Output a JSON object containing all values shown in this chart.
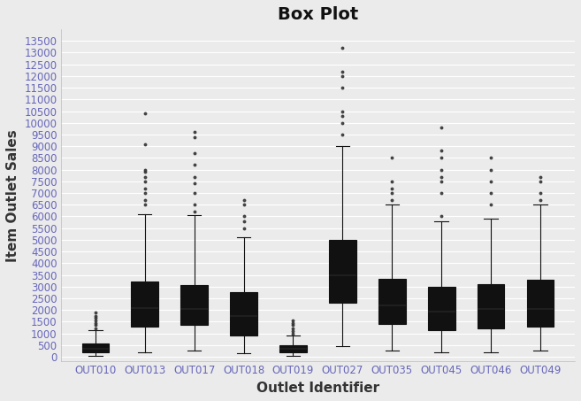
{
  "title": "Box Plot",
  "xlabel": "Outlet Identifier",
  "ylabel": "Item Outlet Sales",
  "title_fontsize": 14,
  "label_fontsize": 11,
  "tick_fontsize": 8.5,
  "background_color": "#EBEBEB",
  "box_color": "#EE0000",
  "median_color": "#222222",
  "whisker_color": "#111111",
  "outlier_color": "#333333",
  "grid_color": "#FFFFFF",
  "tick_color": "#6666BB",
  "label_color": "#333333",
  "ylim": [
    -200,
    14000
  ],
  "yticks": [
    0,
    500,
    1000,
    1500,
    2000,
    2500,
    3000,
    3500,
    4000,
    4500,
    5000,
    5500,
    6000,
    6500,
    7000,
    7500,
    8000,
    8500,
    9000,
    9500,
    10000,
    10500,
    11000,
    11500,
    12000,
    12500,
    13000,
    13500
  ],
  "outlets": [
    "OUT010",
    "OUT013",
    "OUT017",
    "OUT018",
    "OUT019",
    "OUT027",
    "OUT035",
    "OUT045",
    "OUT046",
    "OUT049"
  ],
  "box_stats": {
    "OUT010": {
      "q1": 200,
      "median": 340,
      "q3": 560,
      "whislo": 33,
      "whishi": 1150,
      "fliers": [
        1200,
        1350,
        1450,
        1550,
        1650,
        1750,
        1900
      ]
    },
    "OUT013": {
      "q1": 1300,
      "median": 2100,
      "q3": 3200,
      "whislo": 190,
      "whishi": 6100,
      "fliers": [
        6500,
        6700,
        7000,
        7200,
        7500,
        7700,
        7900,
        8000,
        9100,
        10400
      ]
    },
    "OUT017": {
      "q1": 1380,
      "median": 2050,
      "q3": 3080,
      "whislo": 280,
      "whishi": 6050,
      "fliers": [
        6200,
        6500,
        7000,
        7400,
        7700,
        8200,
        8700,
        9400,
        9600
      ]
    },
    "OUT018": {
      "q1": 900,
      "median": 1750,
      "q3": 2750,
      "whislo": 150,
      "whishi": 5100,
      "fliers": [
        5500,
        5800,
        6000,
        6500,
        6700
      ]
    },
    "OUT019": {
      "q1": 190,
      "median": 340,
      "q3": 510,
      "whislo": 33,
      "whishi": 900,
      "fliers": [
        1000,
        1100,
        1200,
        1350,
        1450,
        1550
      ]
    },
    "OUT027": {
      "q1": 2300,
      "median": 3500,
      "q3": 5000,
      "whislo": 450,
      "whishi": 9000,
      "fliers": [
        9500,
        10000,
        10300,
        10500,
        11500,
        12000,
        12200,
        13200
      ]
    },
    "OUT035": {
      "q1": 1400,
      "median": 2200,
      "q3": 3350,
      "whislo": 280,
      "whishi": 6500,
      "fliers": [
        6700,
        7000,
        7200,
        7500,
        8500
      ]
    },
    "OUT045": {
      "q1": 1150,
      "median": 1950,
      "q3": 3000,
      "whislo": 180,
      "whishi": 5800,
      "fliers": [
        6000,
        7000,
        7500,
        7700,
        8000,
        8500,
        8800,
        9800
      ]
    },
    "OUT046": {
      "q1": 1200,
      "median": 2050,
      "q3": 3100,
      "whislo": 180,
      "whishi": 5900,
      "fliers": [
        6500,
        7000,
        7500,
        8000,
        8500
      ]
    },
    "OUT049": {
      "q1": 1280,
      "median": 2050,
      "q3": 3300,
      "whislo": 280,
      "whishi": 6500,
      "fliers": [
        6700,
        7000,
        7500,
        7700
      ]
    }
  }
}
